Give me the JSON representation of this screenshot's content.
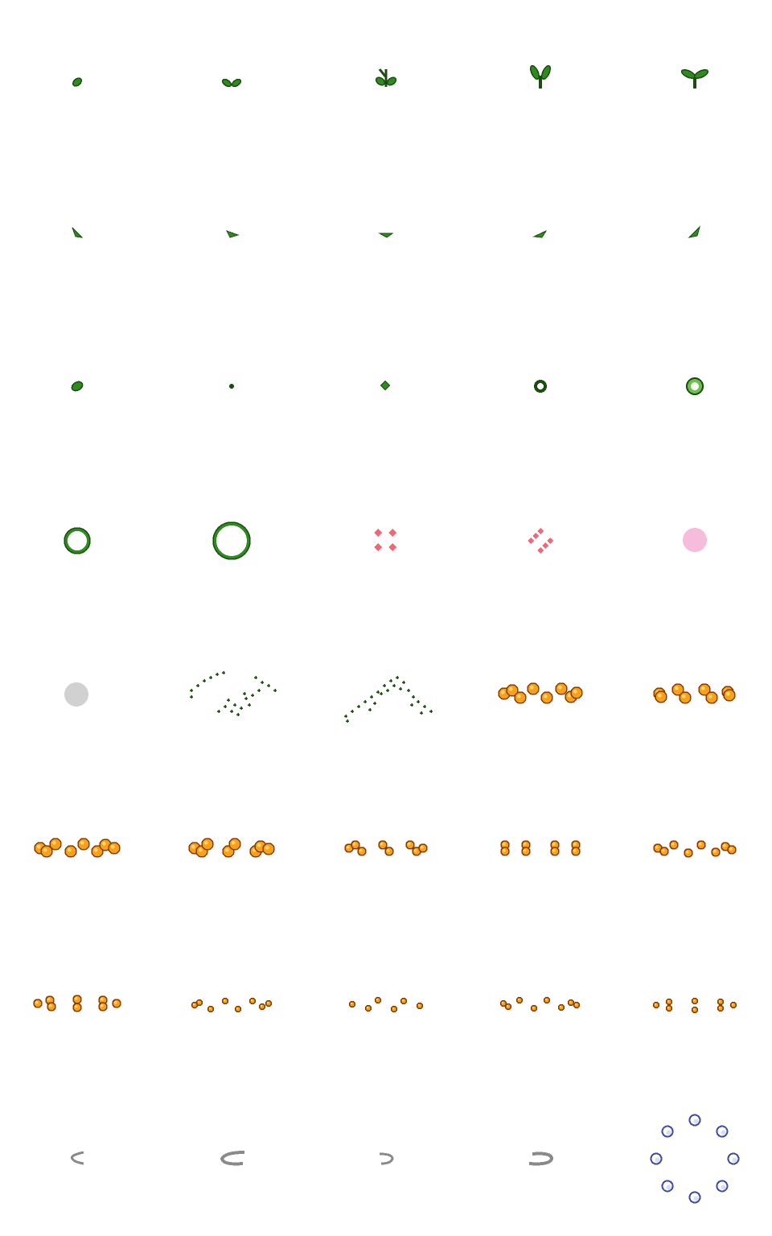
{
  "sheet": {
    "columns": 5,
    "rows": 8,
    "background": "#ffffff",
    "frames": [
      {
        "name": "sprout-stage-1-icon"
      },
      {
        "name": "sprout-stage-2-icon"
      },
      {
        "name": "sprout-stage-3-icon"
      },
      {
        "name": "sprout-stage-4-icon"
      },
      {
        "name": "sprout-stage-5-icon"
      },
      {
        "name": "leaf-fall-1-icon"
      },
      {
        "name": "leaf-fall-2-icon"
      },
      {
        "name": "leaf-fall-3-icon"
      },
      {
        "name": "leaf-fall-4-icon"
      },
      {
        "name": "leaf-fall-5-icon"
      },
      {
        "name": "leaf-small-icon"
      },
      {
        "name": "green-dot-tiny-icon"
      },
      {
        "name": "green-dot-small-icon"
      },
      {
        "name": "green-ring-small-icon"
      },
      {
        "name": "green-ring-medium-icon"
      },
      {
        "name": "green-ring-large-icon"
      },
      {
        "name": "green-ring-xlarge-icon"
      },
      {
        "name": "pink-sparkle-burst-icon"
      },
      {
        "name": "pink-sparkle-small-icon"
      },
      {
        "name": "pink-haze-icon"
      },
      {
        "name": "gray-haze-icon"
      },
      {
        "name": "green-sparkles-scatter-1-icon"
      },
      {
        "name": "green-sparkles-scatter-2-icon"
      },
      {
        "name": "orange-orbs-row-1-icon"
      },
      {
        "name": "orange-orbs-row-2-icon"
      },
      {
        "name": "orange-orbs-row-3-icon"
      },
      {
        "name": "orange-orbs-row-4-icon"
      },
      {
        "name": "orange-orbs-row-5-icon"
      },
      {
        "name": "orange-orbs-row-6-icon"
      },
      {
        "name": "orange-orbs-row-7-icon"
      },
      {
        "name": "orange-orbs-row-8-icon"
      },
      {
        "name": "orange-orbs-row-9-icon"
      },
      {
        "name": "orange-orbs-row-10-icon"
      },
      {
        "name": "orange-orbs-row-11-icon"
      },
      {
        "name": "orange-orbs-row-12-icon"
      },
      {
        "name": "gray-swoosh-1-icon"
      },
      {
        "name": "gray-swoosh-2-icon"
      },
      {
        "name": "gray-swoosh-3-icon"
      },
      {
        "name": "gray-swoosh-4-icon"
      },
      {
        "name": "blue-orb-ring-icon"
      }
    ]
  },
  "colors": {
    "green_dark": "#1a4d0f",
    "green_mid": "#2f8a1f",
    "green_light": "#6cc04a",
    "orange_outline": "#8a3a00",
    "orange_fill": "#f5a11a",
    "orange_light": "#ffd66b",
    "pink": "#f06878",
    "pink_haze": "#f3a6cf",
    "gray_haze": "#c9c9c9",
    "gray_swoosh": "#8a8a8a",
    "blue_orb": "#3a4ab0",
    "blue_orb_light": "#d8dcff"
  }
}
